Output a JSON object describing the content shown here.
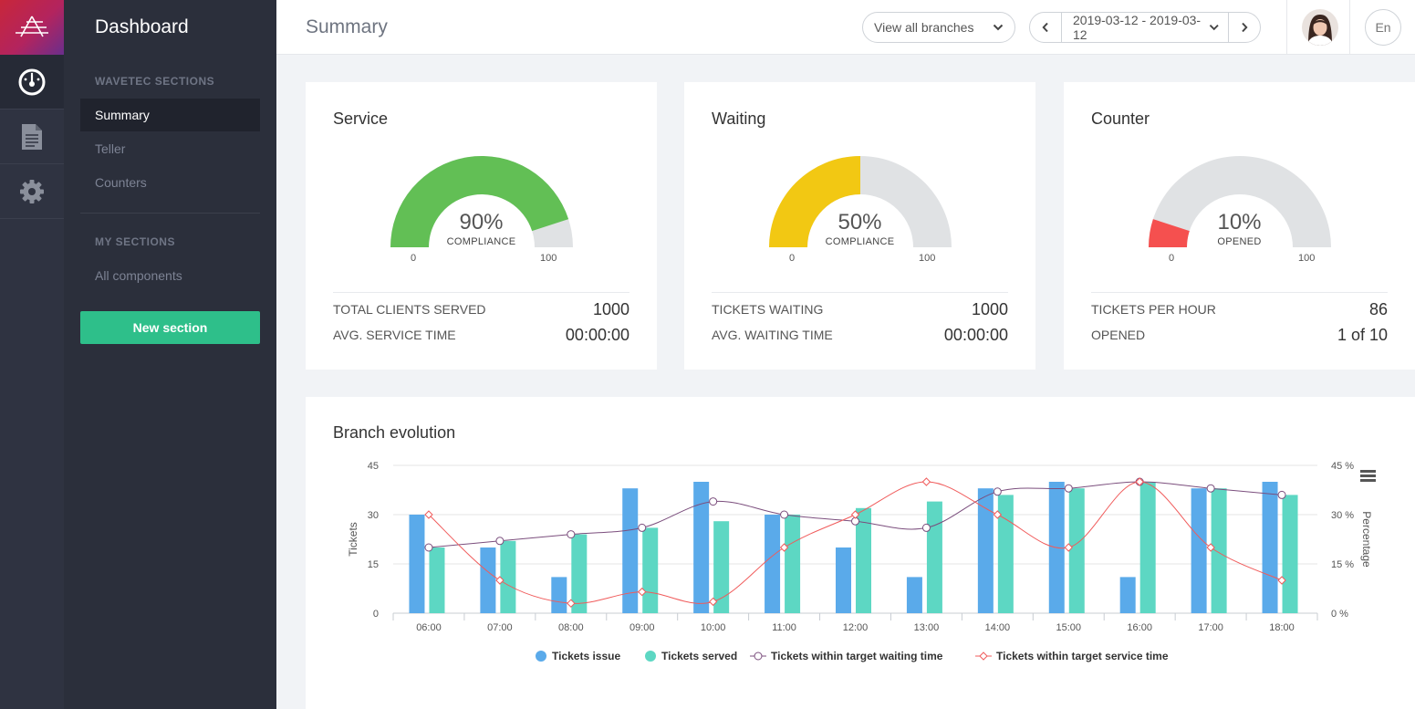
{
  "sidebar": {
    "title": "Dashboard",
    "sections": [
      {
        "heading": "WAVETEC SECTIONS",
        "items": [
          "Summary",
          "Teller",
          "Counters"
        ]
      },
      {
        "heading": "MY SECTIONS",
        "items": [
          "All components"
        ]
      }
    ],
    "new_section_label": "New section",
    "rail_icons": [
      "dashboard-gauge-icon",
      "document-icon",
      "gear-icon"
    ]
  },
  "header": {
    "title": "Summary",
    "branch_select": "View all branches",
    "date_range": "2019-03-12 - 2019-03-12",
    "language": "En"
  },
  "cards": [
    {
      "title": "Service",
      "gauge": {
        "value": 90,
        "display": "90%",
        "label": "COMPLIANCE",
        "min": "0",
        "max": "100",
        "color": "#62bf55"
      },
      "stats": [
        {
          "label": "TOTAL CLIENTS SERVED",
          "value": "1000"
        },
        {
          "label": "AVG. SERVICE TIME",
          "value": "00:00:00"
        }
      ]
    },
    {
      "title": "Waiting",
      "gauge": {
        "value": 50,
        "display": "50%",
        "label": "COMPLIANCE",
        "min": "0",
        "max": "100",
        "color": "#f2c813"
      },
      "stats": [
        {
          "label": "TICKETS WAITING",
          "value": "1000"
        },
        {
          "label": "AVG. WAITING TIME",
          "value": "00:00:00"
        }
      ]
    },
    {
      "title": "Counter",
      "gauge": {
        "value": 10,
        "display": "10%",
        "label": "OPENED",
        "min": "0",
        "max": "100",
        "color": "#f5504f"
      },
      "stats": [
        {
          "label": "TICKETS PER HOUR",
          "value": "86"
        },
        {
          "label": "OPENED",
          "value": "1 of 10"
        }
      ]
    }
  ],
  "chart_data": {
    "type": "bar",
    "title": "Branch evolution",
    "categories": [
      "06:00",
      "07:00",
      "08:00",
      "09:00",
      "10:00",
      "11:00",
      "12:00",
      "13:00",
      "14:00",
      "15:00",
      "16:00",
      "17:00",
      "18:00"
    ],
    "ylabel": "Tickets",
    "ylabel_right": "Percentage",
    "ylim": [
      0,
      45
    ],
    "yticks": [
      "0",
      "15",
      "30",
      "45"
    ],
    "ylim_right": [
      0,
      45
    ],
    "yticks_right": [
      "0 %",
      "15 %",
      "30 %",
      "45 %"
    ],
    "series": [
      {
        "name": "Tickets issue",
        "type": "bar",
        "axis": "left",
        "color": "#5aaaea",
        "values": [
          30,
          20,
          11,
          38,
          40,
          30,
          20,
          11,
          38,
          40,
          11,
          38,
          40
        ]
      },
      {
        "name": "Tickets served",
        "type": "bar",
        "axis": "left",
        "color": "#5dd7c3",
        "values": [
          20,
          22,
          24,
          26,
          28,
          30,
          32,
          34,
          36,
          38,
          40,
          38,
          36
        ]
      },
      {
        "name": "Tickets within target waiting time",
        "type": "line",
        "axis": "right",
        "color": "#7b4e7d",
        "values": [
          20,
          22,
          24,
          26,
          34,
          30,
          28,
          26,
          37,
          38,
          40,
          38,
          36
        ]
      },
      {
        "name": "Tickets within target service time",
        "type": "line",
        "axis": "right",
        "color": "#f05b5b",
        "values": [
          30,
          10,
          3,
          6.5,
          3.5,
          20,
          30,
          40,
          30,
          20,
          40,
          20,
          10
        ]
      }
    ],
    "legend_position": "bottom",
    "grid": true
  }
}
